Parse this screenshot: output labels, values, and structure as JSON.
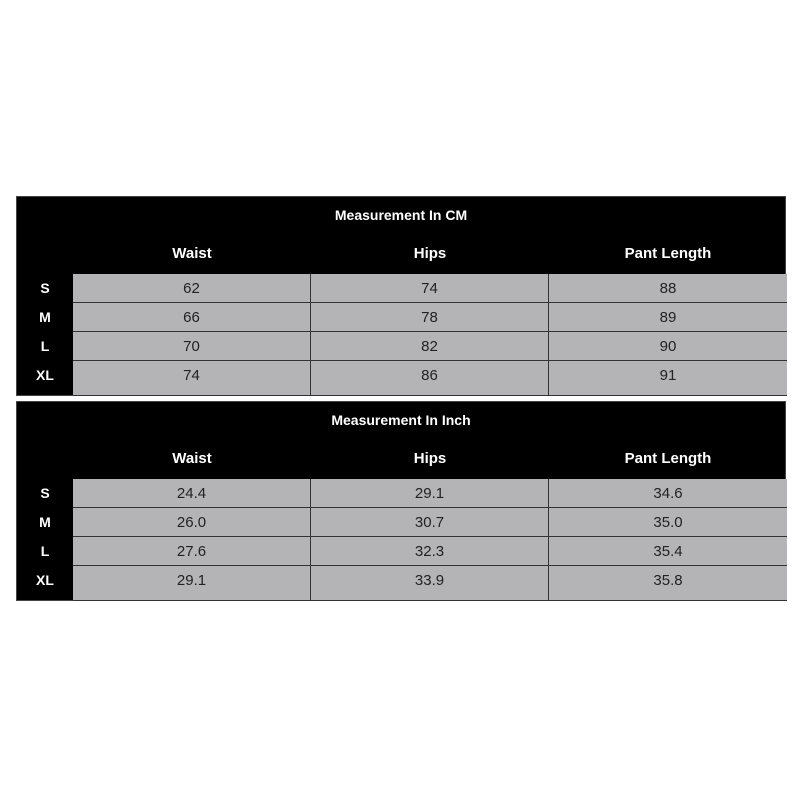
{
  "columns": [
    "Waist",
    "Hips",
    "Pant Length"
  ],
  "sizes": [
    "S",
    "M",
    "L",
    "XL"
  ],
  "tables": [
    {
      "title": "Measurement In CM",
      "rows": [
        [
          "62",
          "74",
          "88"
        ],
        [
          "66",
          "78",
          "89"
        ],
        [
          "70",
          "82",
          "90"
        ],
        [
          "74",
          "86",
          "91"
        ]
      ]
    },
    {
      "title": "Measurement In Inch",
      "rows": [
        [
          "24.4",
          "29.1",
          "34.6"
        ],
        [
          "26.0",
          "30.7",
          "35.0"
        ],
        [
          "27.6",
          "32.3",
          "35.4"
        ],
        [
          "29.1",
          "33.9",
          "35.8"
        ]
      ]
    }
  ],
  "colors": {
    "header_bg": "#000000",
    "cell_bg": "#b4b3b5"
  }
}
